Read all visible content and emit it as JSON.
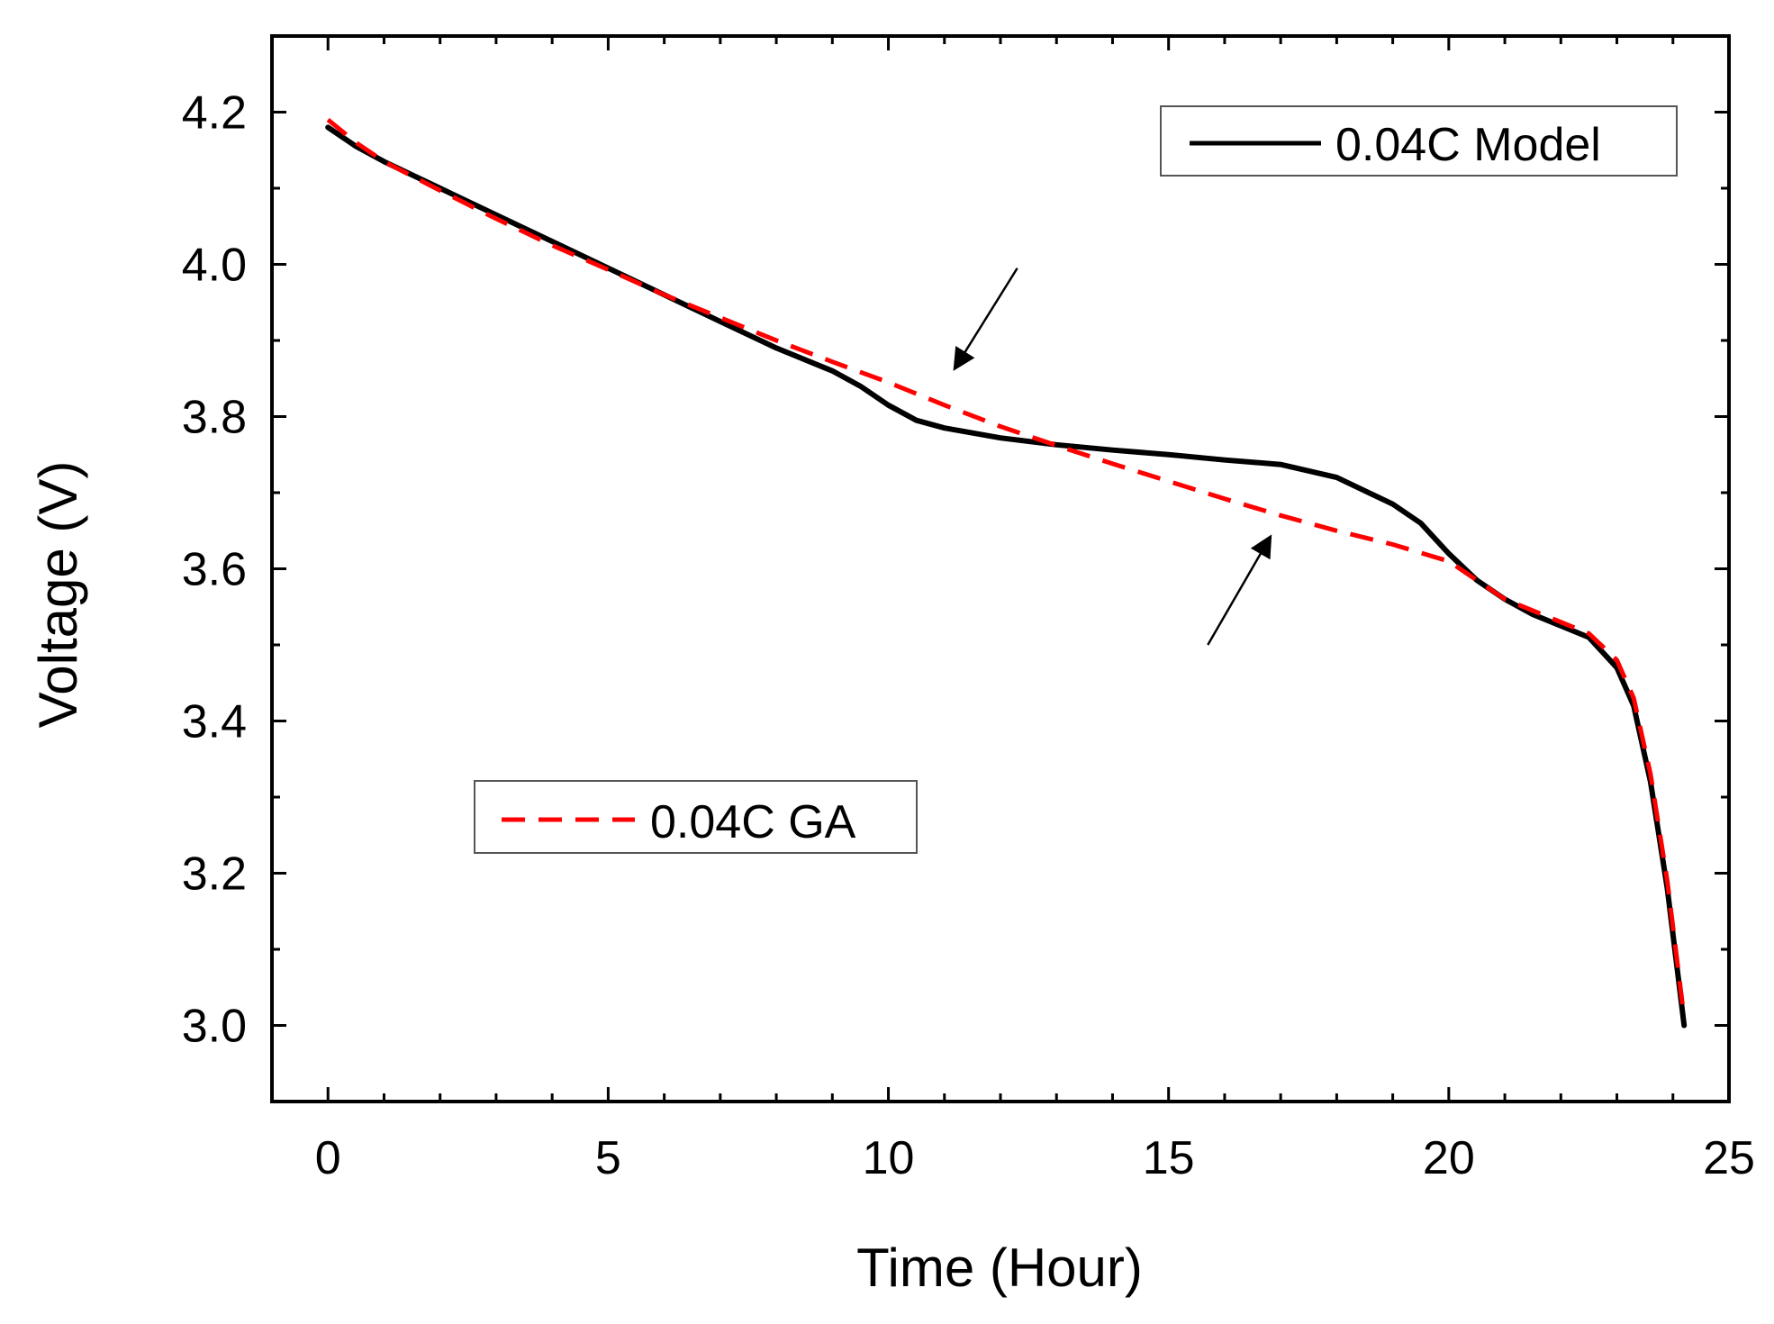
{
  "chart_data": {
    "type": "line",
    "title": "",
    "xlabel": "Time (Hour)",
    "ylabel": "Voltage (V)",
    "xlim": [
      -1,
      25
    ],
    "ylim": [
      2.9,
      4.3
    ],
    "xticks": [
      0,
      5,
      10,
      15,
      20,
      25
    ],
    "yticks": [
      3.0,
      3.2,
      3.4,
      3.6,
      3.8,
      4.0,
      4.2
    ],
    "xtick_labels": [
      "0",
      "5",
      "10",
      "15",
      "20",
      "25"
    ],
    "ytick_labels": [
      "3.0",
      "3.2",
      "3.4",
      "3.6",
      "3.8",
      "4.0",
      "4.2"
    ],
    "grid": false,
    "series": [
      {
        "name": "0.04C Model",
        "style": "solid",
        "color": "#000000",
        "x": [
          0,
          0.5,
          1,
          2,
          3,
          4,
          5,
          6,
          7,
          8,
          9,
          9.5,
          10,
          10.5,
          11,
          12,
          13,
          14,
          15,
          16,
          17,
          18,
          19,
          19.5,
          20,
          20.5,
          21,
          21.5,
          22,
          22.5,
          23,
          23.3,
          23.6,
          23.9,
          24.1,
          24.2
        ],
        "y": [
          4.18,
          4.155,
          4.135,
          4.1,
          4.065,
          4.03,
          3.995,
          3.96,
          3.925,
          3.89,
          3.86,
          3.84,
          3.815,
          3.795,
          3.785,
          3.772,
          3.763,
          3.756,
          3.75,
          3.743,
          3.737,
          3.72,
          3.685,
          3.66,
          3.62,
          3.585,
          3.56,
          3.54,
          3.525,
          3.51,
          3.47,
          3.42,
          3.32,
          3.18,
          3.06,
          3.0
        ]
      },
      {
        "name": "0.04C GA",
        "style": "dashed",
        "color": "#ff0000",
        "x": [
          0,
          0.5,
          1,
          2,
          3,
          4,
          5,
          6,
          7,
          8,
          9,
          10,
          11,
          12,
          13,
          14,
          15,
          16,
          17,
          18,
          19,
          20,
          20.5,
          21,
          21.5,
          22,
          22.5,
          23,
          23.3,
          23.6,
          23.9,
          24.1,
          24.2
        ],
        "y": [
          4.19,
          4.16,
          4.135,
          4.097,
          4.06,
          4.025,
          3.993,
          3.96,
          3.93,
          3.9,
          3.872,
          3.845,
          3.815,
          3.787,
          3.762,
          3.738,
          3.715,
          3.692,
          3.67,
          3.65,
          3.632,
          3.61,
          3.585,
          3.56,
          3.545,
          3.53,
          3.515,
          3.48,
          3.43,
          3.33,
          3.19,
          3.07,
          3.01
        ]
      }
    ],
    "legend": [
      {
        "label": "0.04C Model",
        "style": "solid",
        "color": "#000000",
        "placement": "top-right"
      },
      {
        "label": "0.04C GA",
        "style": "dashed",
        "color": "#ff0000",
        "placement": "center-left"
      }
    ],
    "annotations": [
      {
        "type": "arrow",
        "from": [
          12.3,
          3.995
        ],
        "to": [
          11.2,
          3.865
        ]
      },
      {
        "type": "arrow",
        "from": [
          15.7,
          3.5
        ],
        "to": [
          16.8,
          3.64
        ]
      }
    ]
  }
}
